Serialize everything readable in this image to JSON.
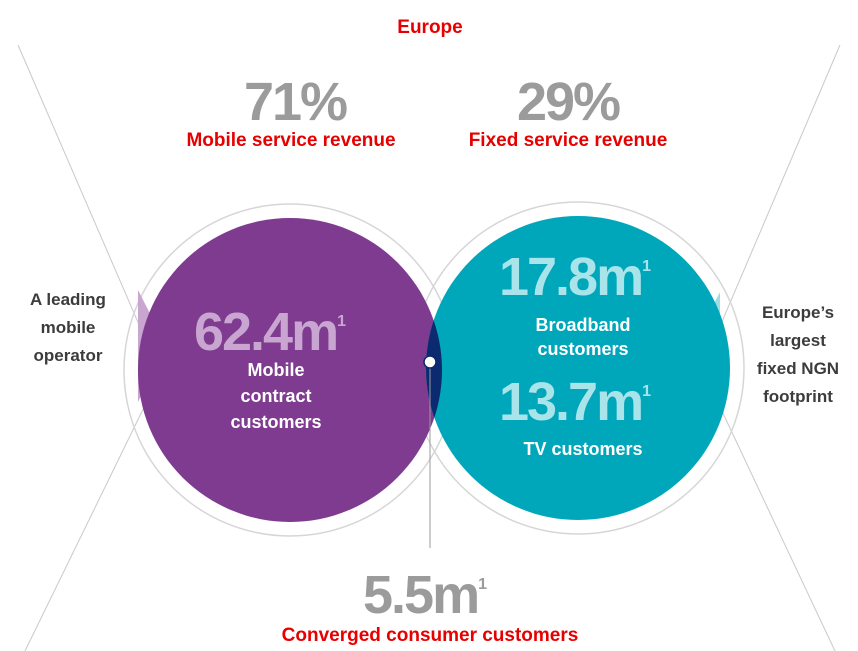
{
  "header": {
    "title": "Europe"
  },
  "footnote": "1",
  "revenue": {
    "mobile": {
      "value": "71%",
      "label": "Mobile service revenue"
    },
    "fixed": {
      "value": "29%",
      "label": "Fixed service revenue"
    }
  },
  "mobile": {
    "value": "62.4m",
    "label": [
      "Mobile",
      "contract",
      "customers"
    ]
  },
  "broadband": {
    "value": "17.8m",
    "label": [
      "Broadband",
      "customers"
    ]
  },
  "tv": {
    "value": "13.7m",
    "label": [
      "TV customers"
    ]
  },
  "converged": {
    "value": "5.5m",
    "label": "Converged consumer customers"
  },
  "side_left": [
    "A leading",
    "mobile",
    "operator"
  ],
  "side_right": [
    "Europe’s",
    "largest",
    "fixed NGN",
    "footprint"
  ]
}
